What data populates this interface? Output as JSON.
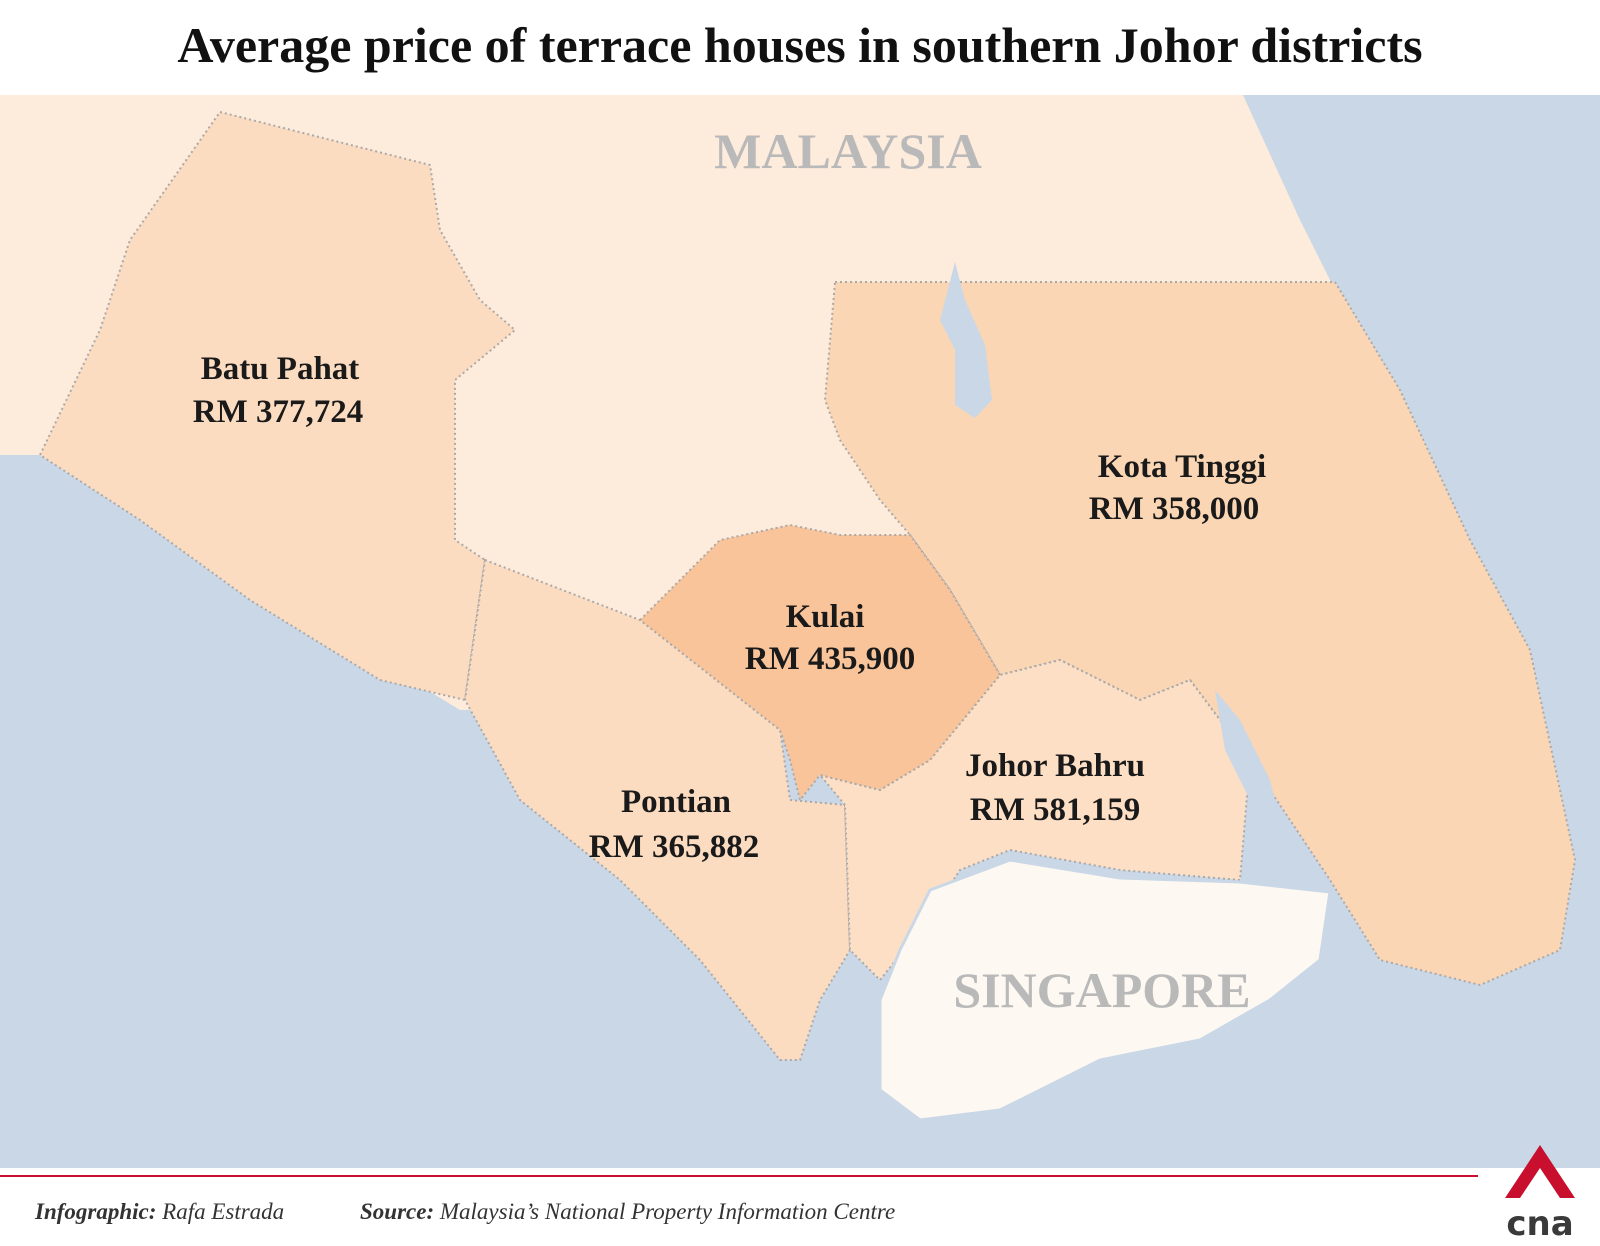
{
  "title": "Average price of terrace houses in southern Johor districts",
  "labels": {
    "malaysia": "MALAYSIA",
    "singapore": "SINGAPORE"
  },
  "districts": [
    {
      "name": "Batu Pahat",
      "price": "RM 377,724"
    },
    {
      "name": "Kota Tinggi",
      "price": "RM 358,000"
    },
    {
      "name": "Kulai",
      "price": "RM 435,900"
    },
    {
      "name": "Johor Bahru",
      "price": "RM 581,159"
    },
    {
      "name": "Pontian",
      "price": "RM 365,882"
    }
  ],
  "footer": {
    "infographic_label": "Infographic:",
    "infographic_value": "Rafa Estrada",
    "source_label": "Source:",
    "source_value": "Malaysia’s National Property Information Centre"
  },
  "logo": "cna"
}
